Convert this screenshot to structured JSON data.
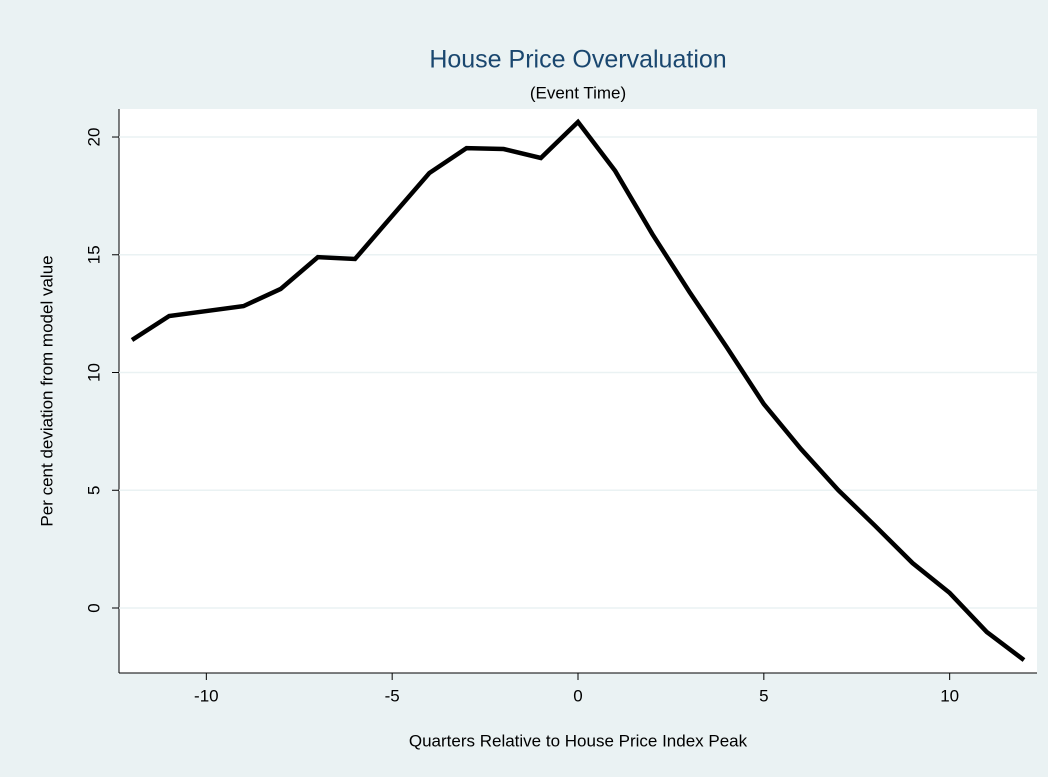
{
  "chart_data": {
    "type": "line",
    "title": "House Price Overvaluation",
    "subtitle": "(Event Time)",
    "x_label": "Quarters Relative to House Price Index Peak",
    "y_label": "Per cent deviation from model value",
    "x": [
      -12,
      -11,
      -10,
      -9,
      -8,
      -7,
      -6,
      -5,
      -4,
      -3,
      -2,
      -1,
      0,
      1,
      2,
      3,
      4,
      5,
      6,
      7,
      8,
      9,
      10,
      11,
      12
    ],
    "series": [
      {
        "color": "#000000",
        "values": [
          11.38,
          12.4,
          12.61,
          12.82,
          13.55,
          14.9,
          14.82,
          16.65,
          18.47,
          19.53,
          19.49,
          19.11,
          20.64,
          18.56,
          15.88,
          13.42,
          11.08,
          8.66,
          6.75,
          5.01,
          3.48,
          1.91,
          0.64,
          -1.02,
          -2.21
        ]
      }
    ],
    "xlim": [
      -12.35,
      12.35
    ],
    "xticks": [
      -10,
      -5,
      0,
      5,
      10
    ],
    "ylim": [
      -2.76,
      21.19
    ],
    "yticks": [
      0,
      5,
      10,
      15,
      20
    ],
    "grid": true
  }
}
